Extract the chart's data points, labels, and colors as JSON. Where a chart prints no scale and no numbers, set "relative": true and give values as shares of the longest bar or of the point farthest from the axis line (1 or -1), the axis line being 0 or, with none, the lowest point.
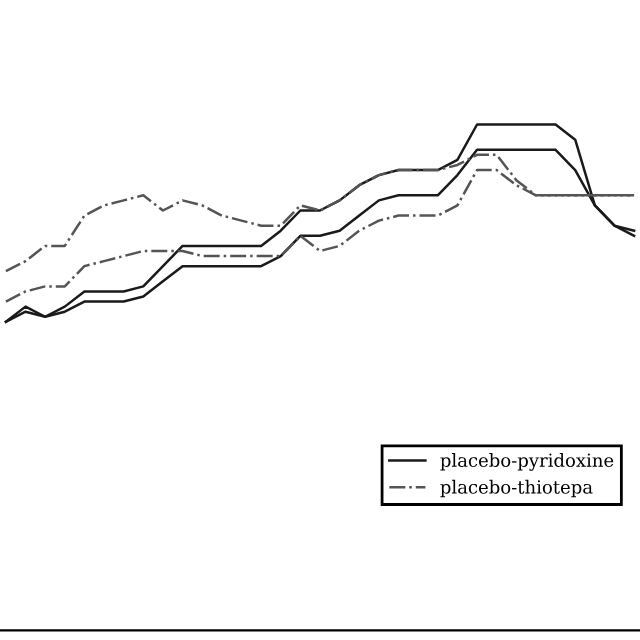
{
  "chart_data": {
    "type": "line",
    "relative": true,
    "categories": [
      null,
      null,
      null,
      null,
      null,
      null,
      null,
      null,
      null,
      null,
      null,
      null,
      null,
      null,
      null,
      null,
      null,
      null,
      null,
      null,
      null,
      null,
      null,
      null,
      null,
      null,
      null,
      null,
      null,
      null,
      null,
      null,
      null
    ],
    "series": [
      {
        "name": "placebo-pyridoxine",
        "color": "#1a1a1a",
        "line_style": "solid",
        "values": [
          0.61,
          0.64,
          0.62,
          0.64,
          0.67,
          0.67,
          0.67,
          0.68,
          0.72,
          0.76,
          0.76,
          0.76,
          0.76,
          0.76,
          0.79,
          0.83,
          0.83,
          0.85,
          0.88,
          0.9,
          0.91,
          0.91,
          0.91,
          0.93,
          1,
          1,
          1,
          1,
          1,
          0.97,
          0.84,
          0.8,
          0.79
        ]
      },
      {
        "color": "#1a1a1a",
        "line_style": "solid",
        "values": [
          0.61,
          0.63,
          0.62,
          0.63,
          0.65,
          0.65,
          0.65,
          0.66,
          0.69,
          0.72,
          0.72,
          0.72,
          0.72,
          0.72,
          0.74,
          0.78,
          0.78,
          0.79,
          0.82,
          0.85,
          0.86,
          0.86,
          0.86,
          0.9,
          0.95,
          0.95,
          0.95,
          0.95,
          0.95,
          0.91,
          0.84,
          0.8,
          0.78
        ]
      },
      {
        "name": "placebo-thiotepa",
        "color": "#555555",
        "line_style": "dashdot",
        "values": [
          0.71,
          0.73,
          0.76,
          0.76,
          0.82,
          0.84,
          0.85,
          0.86,
          0.83,
          0.85,
          0.84,
          0.82,
          0.81,
          0.8,
          0.8,
          0.84,
          0.83,
          0.85,
          0.88,
          0.9,
          0.91,
          0.91,
          0.91,
          0.92,
          0.94,
          0.94,
          0.89,
          0.86,
          0.86,
          0.86,
          0.86,
          0.86,
          0.86
        ]
      },
      {
        "color": "#555555",
        "line_style": "dashdot",
        "values": [
          0.65,
          0.67,
          0.68,
          0.68,
          0.72,
          0.73,
          0.74,
          0.75,
          0.75,
          0.75,
          0.74,
          0.74,
          0.74,
          0.74,
          0.74,
          0.78,
          0.75,
          0.76,
          0.79,
          0.81,
          0.82,
          0.82,
          0.82,
          0.84,
          0.91,
          0.91,
          0.88,
          0.86,
          0.86,
          0.86,
          0.86,
          0.86,
          0.86
        ]
      }
    ],
    "legend": "right",
    "grid": false
  }
}
